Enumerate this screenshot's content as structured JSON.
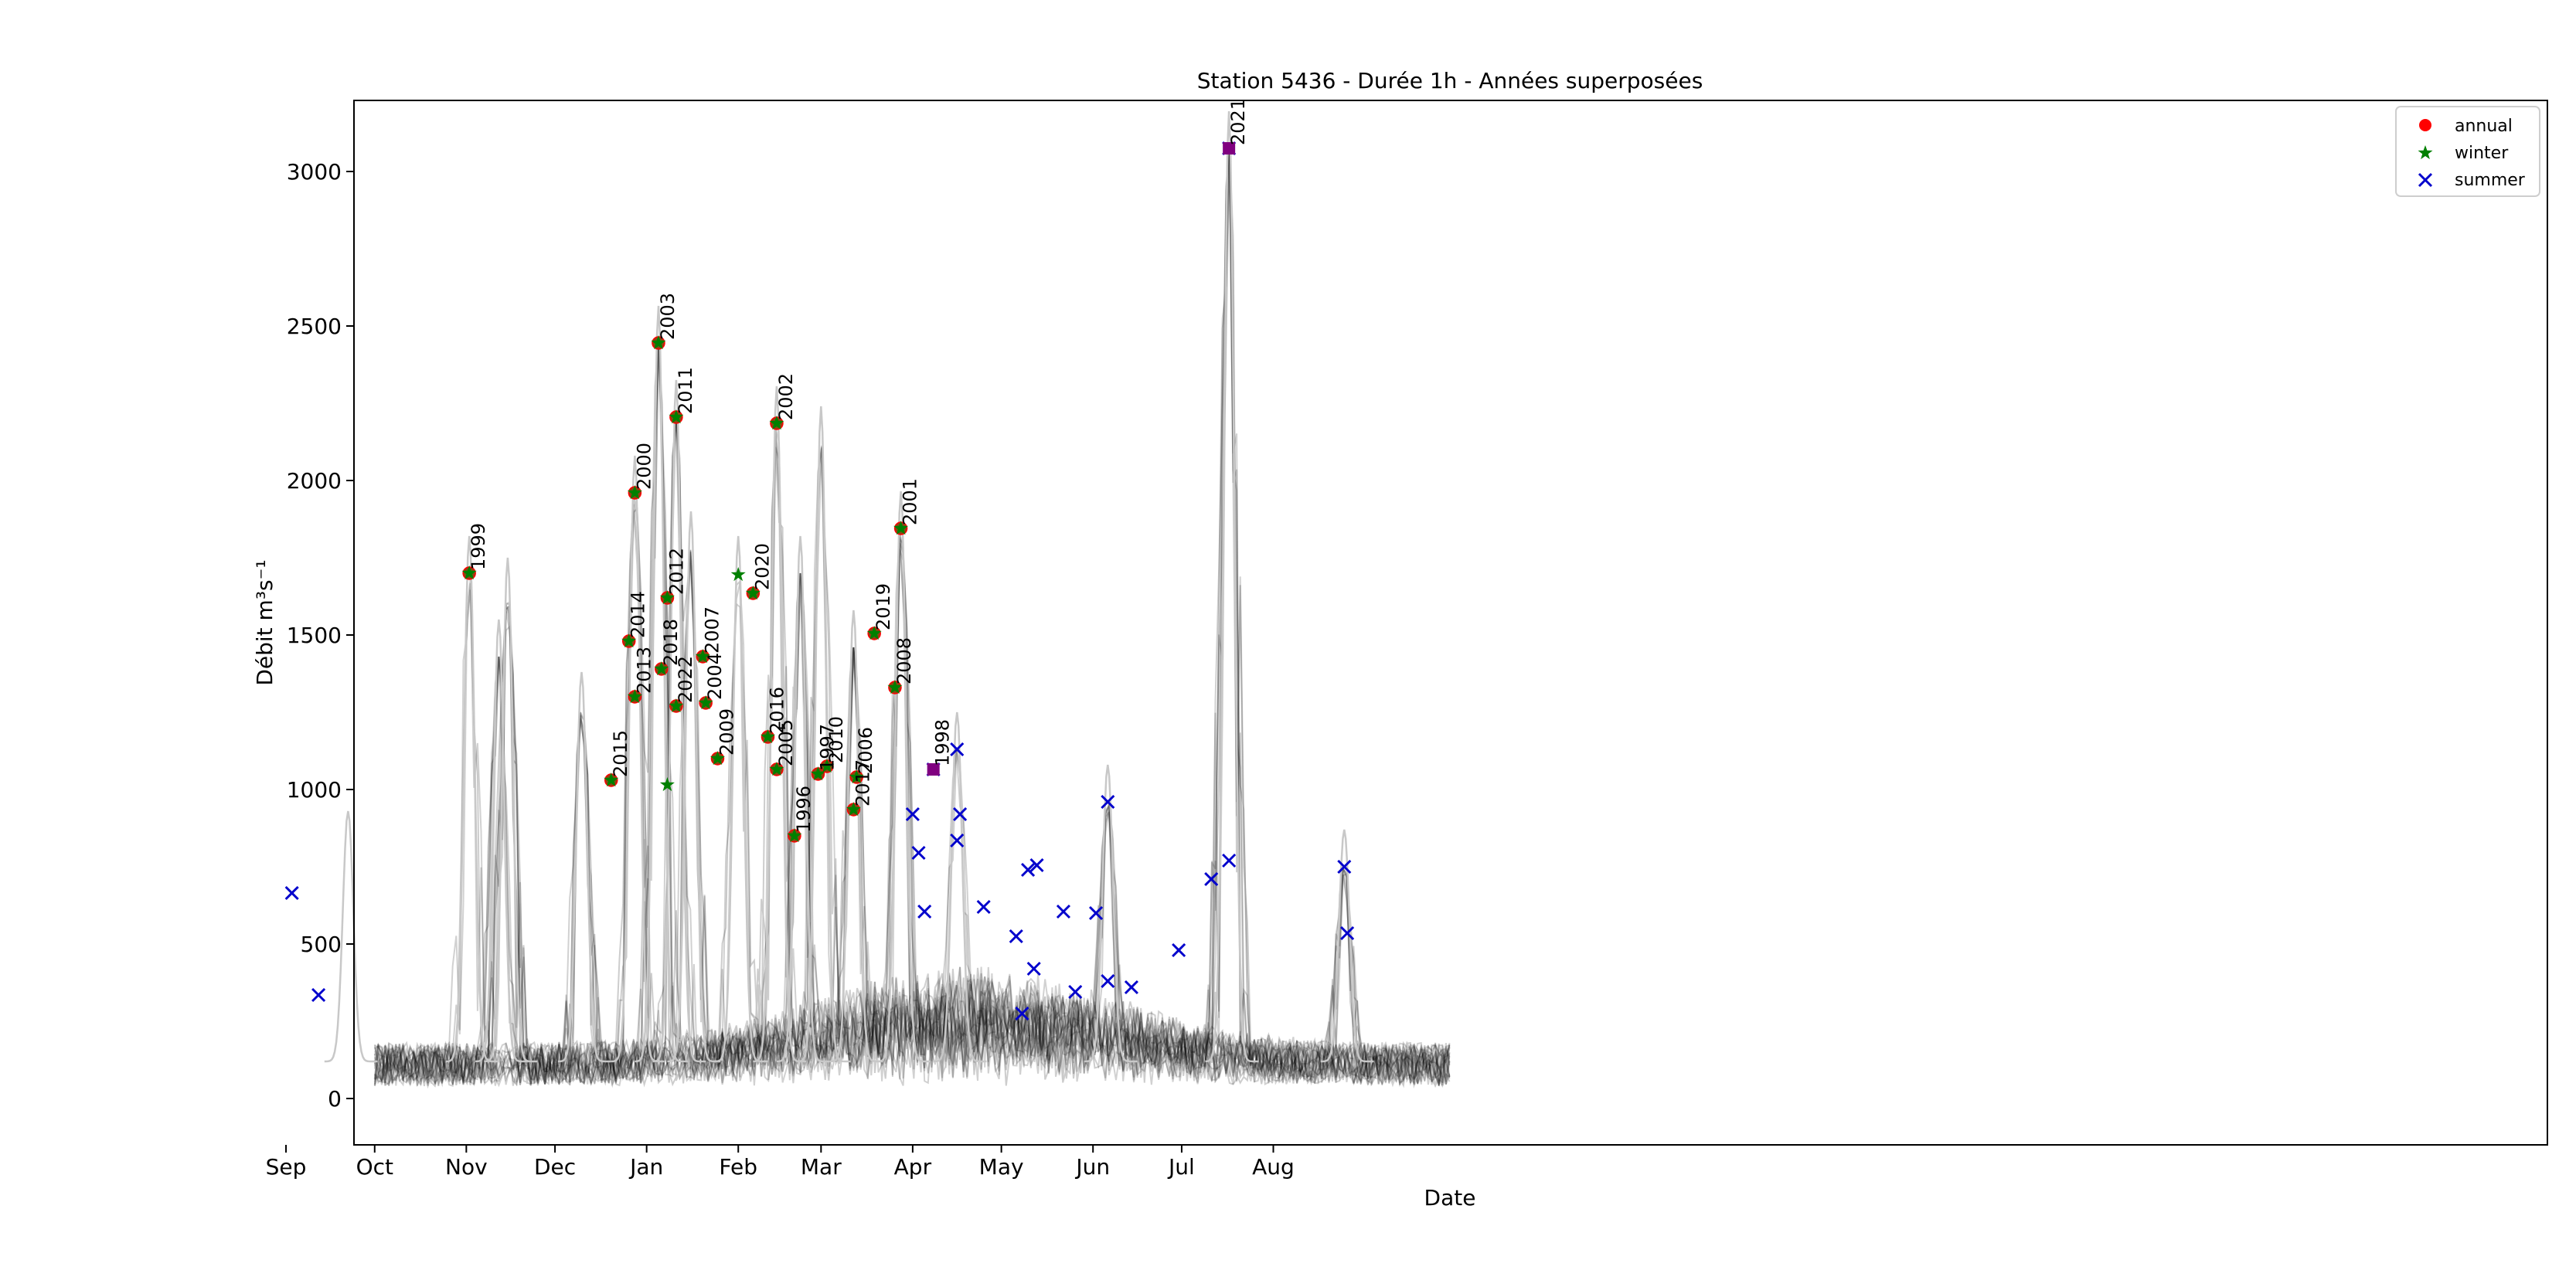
{
  "chart_data": {
    "type": "line",
    "title": "Station 5436 - Durée 1h - Années superposées",
    "xlabel": "Date",
    "ylabel": "Débit m³s⁻¹",
    "ylim": [
      -150,
      3230
    ],
    "xlim": [
      "09-24",
      "10-06"
    ],
    "x_ticks": [
      "Oct",
      "Nov",
      "Dec",
      "Jan",
      "Feb",
      "Mar",
      "Apr",
      "May",
      "Jun",
      "Jul",
      "Aug",
      "Sep"
    ],
    "y_ticks": [
      0,
      500,
      1000,
      1500,
      2000,
      2500,
      3000
    ],
    "grid": false,
    "legend": {
      "position": "top-right",
      "entries": [
        "annual",
        "winter",
        "summer"
      ]
    },
    "colors": {
      "annual": "#ff0000",
      "annual_overlap": "#8b4513",
      "winter": "#008000",
      "summer": "#0000cc",
      "overlap_purple": "#800080",
      "lines_faint": "#c8c8c8",
      "lines_dark": "#000000"
    },
    "annual_points": [
      {
        "label": "1999",
        "date": "11-02",
        "value": 1700
      },
      {
        "label": "2015",
        "date": "12-20",
        "value": 1030
      },
      {
        "label": "2014",
        "date": "12-26",
        "value": 1480
      },
      {
        "label": "2000",
        "date": "12-28",
        "value": 1960
      },
      {
        "label": "2013",
        "date": "12-28",
        "value": 1300
      },
      {
        "label": "2003",
        "date": "01-05",
        "value": 2445
      },
      {
        "label": "2018",
        "date": "01-06",
        "value": 1390
      },
      {
        "label": "2012",
        "date": "01-08",
        "value": 1620
      },
      {
        "label": "2011",
        "date": "01-11",
        "value": 2205
      },
      {
        "label": "2022",
        "date": "01-11",
        "value": 1270
      },
      {
        "label": "2007",
        "date": "01-20",
        "value": 1430
      },
      {
        "label": "2004",
        "date": "01-21",
        "value": 1280
      },
      {
        "label": "2009",
        "date": "01-25",
        "value": 1100
      },
      {
        "label": "2020",
        "date": "02-06",
        "value": 1635
      },
      {
        "label": "2016",
        "date": "02-11",
        "value": 1170
      },
      {
        "label": "2002",
        "date": "02-14",
        "value": 2185
      },
      {
        "label": "2005",
        "date": "02-14",
        "value": 1065
      },
      {
        "label": "1996",
        "date": "02-20",
        "value": 850
      },
      {
        "label": "1997",
        "date": "02-28",
        "value": 1050
      },
      {
        "label": "2010",
        "date": "03-03",
        "value": 1075
      },
      {
        "label": "2017",
        "date": "03-12",
        "value": 935
      },
      {
        "label": "2006",
        "date": "03-13",
        "value": 1040
      },
      {
        "label": "2019",
        "date": "03-19",
        "value": 1505
      },
      {
        "label": "2008",
        "date": "03-26",
        "value": 1330
      },
      {
        "label": "2001",
        "date": "03-28",
        "value": 1845
      },
      {
        "label": "1998",
        "date": "04-08",
        "value": 1065
      },
      {
        "label": "2021",
        "date": "07-17",
        "value": 3075
      }
    ],
    "winter_points": [
      {
        "date": "01-08",
        "value": 1015
      },
      {
        "date": "02-01",
        "value": 1695
      }
    ],
    "summer_points": [
      {
        "date": "04-01",
        "value": 920
      },
      {
        "date": "04-03",
        "value": 795
      },
      {
        "date": "04-05",
        "value": 605
      },
      {
        "date": "04-08",
        "value": 1065
      },
      {
        "date": "04-16",
        "value": 1130
      },
      {
        "date": "04-16",
        "value": 835
      },
      {
        "date": "04-17",
        "value": 920
      },
      {
        "date": "04-25",
        "value": 620
      },
      {
        "date": "05-06",
        "value": 525
      },
      {
        "date": "05-08",
        "value": 275
      },
      {
        "date": "05-10",
        "value": 740
      },
      {
        "date": "05-12",
        "value": 420
      },
      {
        "date": "05-13",
        "value": 755
      },
      {
        "date": "05-22",
        "value": 605
      },
      {
        "date": "05-26",
        "value": 345
      },
      {
        "date": "06-02",
        "value": 600
      },
      {
        "date": "06-06",
        "value": 960
      },
      {
        "date": "06-06",
        "value": 380
      },
      {
        "date": "06-14",
        "value": 360
      },
      {
        "date": "06-30",
        "value": 480
      },
      {
        "date": "07-11",
        "value": 710
      },
      {
        "date": "07-17",
        "value": 3075
      },
      {
        "date": "07-17",
        "value": 770
      },
      {
        "date": "08-25",
        "value": 750
      },
      {
        "date": "08-26",
        "value": 535
      },
      {
        "date": "09-03",
        "value": 665
      },
      {
        "date": "09-12",
        "value": 335
      }
    ],
    "faint_peaks": [
      {
        "date": "11-02",
        "value": 1700
      },
      {
        "date": "11-15",
        "value": 1630
      },
      {
        "date": "11-12",
        "value": 1430
      },
      {
        "date": "12-10",
        "value": 1260
      },
      {
        "date": "01-05",
        "value": 2445
      },
      {
        "date": "01-11",
        "value": 2205
      },
      {
        "date": "01-16",
        "value": 1780
      },
      {
        "date": "12-28",
        "value": 1960
      },
      {
        "date": "02-01",
        "value": 1700
      },
      {
        "date": "02-14",
        "value": 2185
      },
      {
        "date": "02-22",
        "value": 1700
      },
      {
        "date": "03-01",
        "value": 2120
      },
      {
        "date": "03-12",
        "value": 1460
      },
      {
        "date": "03-28",
        "value": 1845
      },
      {
        "date": "04-16",
        "value": 1130
      },
      {
        "date": "06-06",
        "value": 960
      },
      {
        "date": "07-17",
        "value": 3075
      },
      {
        "date": "08-25",
        "value": 750
      },
      {
        "date": "09-22",
        "value": 810
      }
    ]
  }
}
